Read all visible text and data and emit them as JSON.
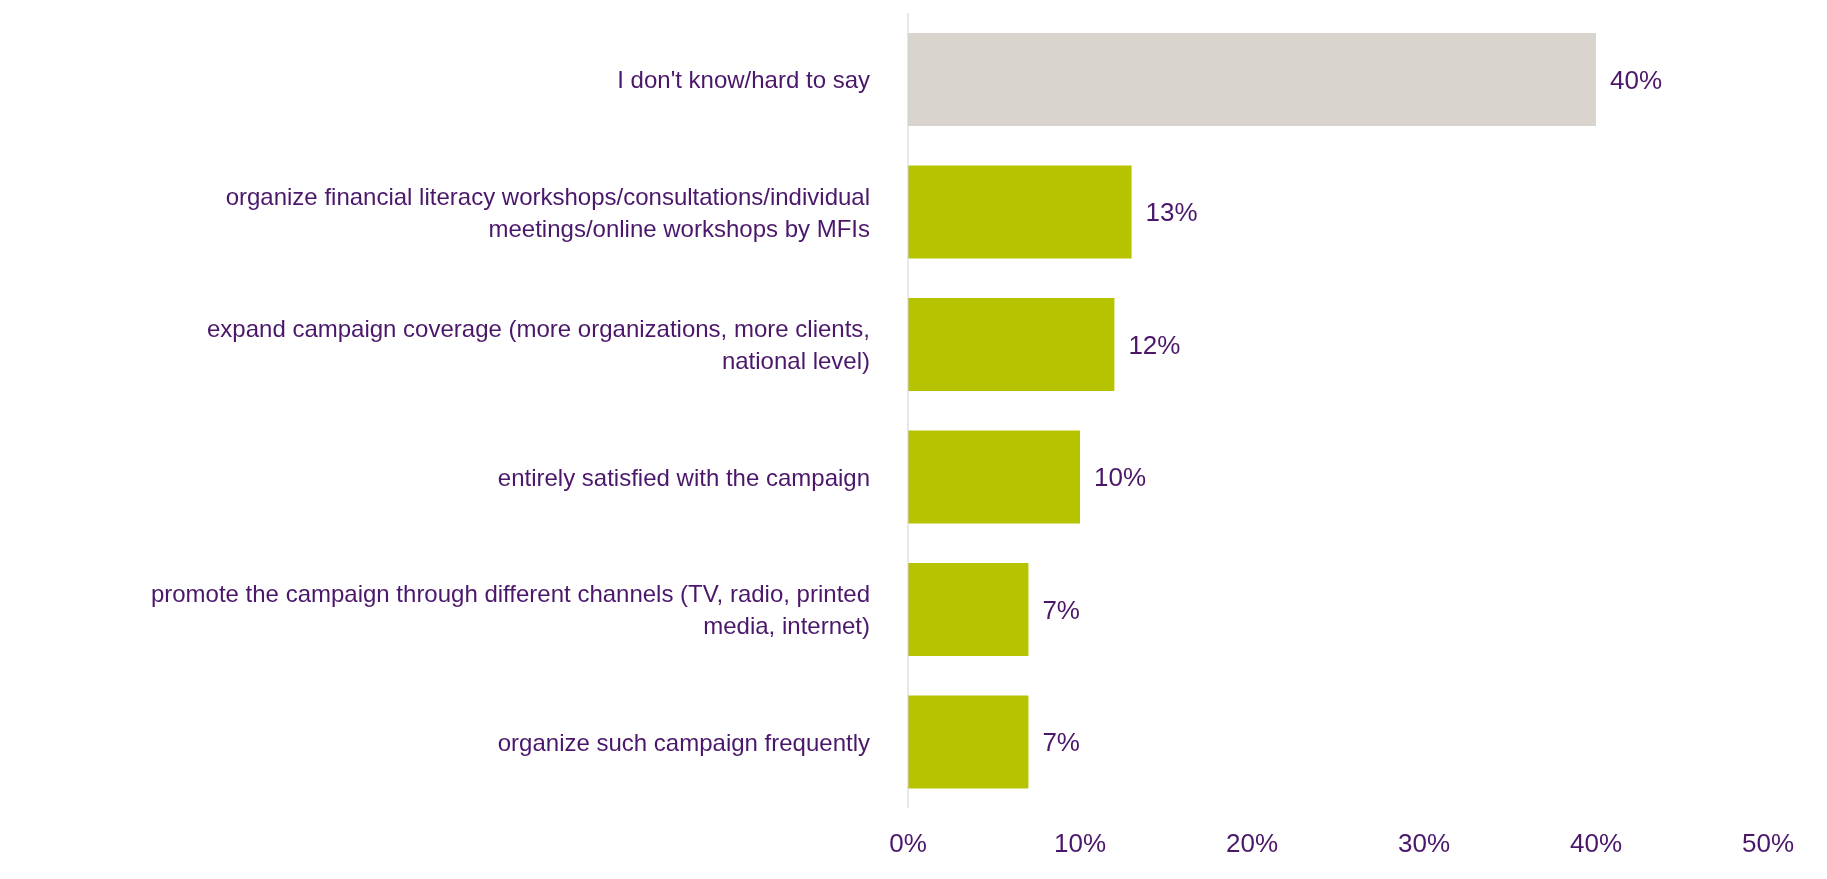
{
  "chart_data": {
    "type": "bar",
    "orientation": "horizontal",
    "categories": [
      "I don't know/hard to say",
      "organize financial literacy workshops/consultations/individual meetings/online workshops by MFIs",
      "expand campaign coverage (more organizations, more clients, national level)",
      "entirely satisfied with the campaign",
      "promote the campaign through different channels (TV, radio, printed media, internet)",
      "organize such campaign frequently"
    ],
    "values": [
      40,
      13,
      12,
      10,
      7,
      7
    ],
    "colors": [
      "#d9d5ce",
      "#b5c300",
      "#b5c300",
      "#b5c300",
      "#b5c300",
      "#b5c300"
    ],
    "value_labels": [
      "40%",
      "13%",
      "12%",
      "10%",
      "7%",
      "7%"
    ],
    "xlim": [
      0,
      50
    ],
    "xticks": [
      {
        "value": 0,
        "label": "0%"
      },
      {
        "value": 10,
        "label": "10%"
      },
      {
        "value": 20,
        "label": "20%"
      },
      {
        "value": 30,
        "label": "30%"
      },
      {
        "value": 40,
        "label": "40%"
      },
      {
        "value": 50,
        "label": "50%"
      }
    ]
  }
}
